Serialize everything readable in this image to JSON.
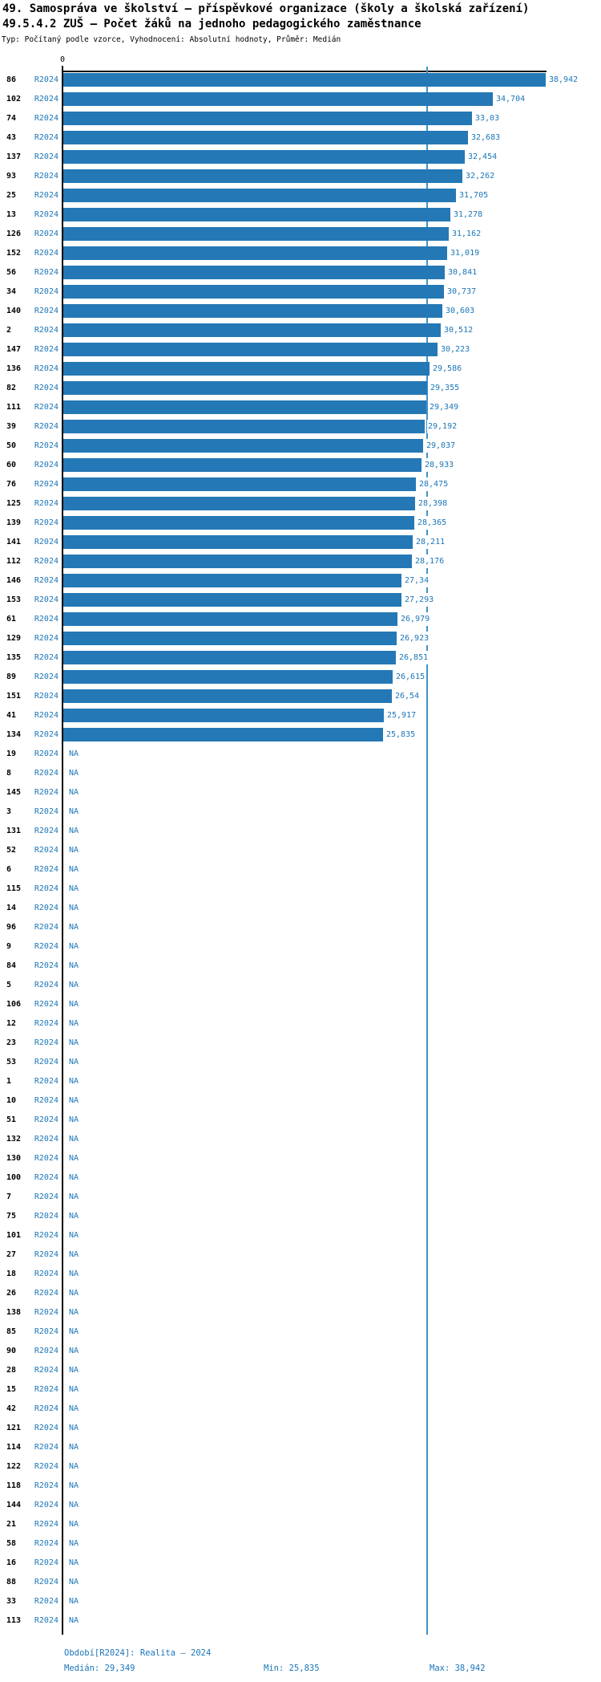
{
  "header": {
    "title_line1": "49. Samospráva ve školství – příspěvkové organizace (školy a školská zařízení)",
    "title_line2": "49.5.4.2 ZUŠ – Počet žáků na jednoho pedagogického zaměstnance",
    "subtitle": "Typ: Počítaný podle vzorce, Vyhodnocení: Absolutní hodnoty, Průměr: Medián"
  },
  "axis": {
    "origin_tick_label": "0"
  },
  "footer": {
    "period": "Období[R2024]: Realita – 2024",
    "median": "Medián: 29,349",
    "min": "Min: 25,835",
    "max": "Max: 38,942"
  },
  "colors": {
    "bar": "#2478b5",
    "accent_text": "#1b76b8",
    "median_line": "#4292c6",
    "axis": "#000000"
  },
  "chart_data": {
    "type": "bar",
    "orientation": "horizontal",
    "title": "49.5.4.2 ZUŠ – Počet žáků na jednoho pedagogického zaměstnance",
    "period_label": "R2024",
    "na_label": "NA",
    "xlim": [
      0,
      38.942
    ],
    "median": 29.349,
    "min": 25.835,
    "max": 38.942,
    "legend_position": "none",
    "grid": false,
    "rows": [
      {
        "id": "86",
        "value": 38.942,
        "label": "38,942"
      },
      {
        "id": "102",
        "value": 34.704,
        "label": "34,704"
      },
      {
        "id": "74",
        "value": 33.03,
        "label": "33,03"
      },
      {
        "id": "43",
        "value": 32.683,
        "label": "32,683"
      },
      {
        "id": "137",
        "value": 32.454,
        "label": "32,454"
      },
      {
        "id": "93",
        "value": 32.262,
        "label": "32,262"
      },
      {
        "id": "25",
        "value": 31.705,
        "label": "31,705"
      },
      {
        "id": "13",
        "value": 31.278,
        "label": "31,278"
      },
      {
        "id": "126",
        "value": 31.162,
        "label": "31,162"
      },
      {
        "id": "152",
        "value": 31.019,
        "label": "31,019"
      },
      {
        "id": "56",
        "value": 30.841,
        "label": "30,841"
      },
      {
        "id": "34",
        "value": 30.737,
        "label": "30,737"
      },
      {
        "id": "140",
        "value": 30.603,
        "label": "30,603"
      },
      {
        "id": "2",
        "value": 30.512,
        "label": "30,512"
      },
      {
        "id": "147",
        "value": 30.223,
        "label": "30,223"
      },
      {
        "id": "136",
        "value": 29.586,
        "label": "29,586"
      },
      {
        "id": "82",
        "value": 29.355,
        "label": "29,355"
      },
      {
        "id": "111",
        "value": 29.349,
        "label": "29,349"
      },
      {
        "id": "39",
        "value": 29.192,
        "label": "29,192"
      },
      {
        "id": "50",
        "value": 29.037,
        "label": "29,037"
      },
      {
        "id": "60",
        "value": 28.933,
        "label": "28,933"
      },
      {
        "id": "76",
        "value": 28.475,
        "label": "28,475"
      },
      {
        "id": "125",
        "value": 28.398,
        "label": "28,398"
      },
      {
        "id": "139",
        "value": 28.365,
        "label": "28,365"
      },
      {
        "id": "141",
        "value": 28.211,
        "label": "28,211"
      },
      {
        "id": "112",
        "value": 28.176,
        "label": "28,176"
      },
      {
        "id": "146",
        "value": 27.34,
        "label": "27,34"
      },
      {
        "id": "153",
        "value": 27.293,
        "label": "27,293"
      },
      {
        "id": "61",
        "value": 26.979,
        "label": "26,979"
      },
      {
        "id": "129",
        "value": 26.923,
        "label": "26,923"
      },
      {
        "id": "135",
        "value": 26.851,
        "label": "26,851"
      },
      {
        "id": "89",
        "value": 26.615,
        "label": "26,615"
      },
      {
        "id": "151",
        "value": 26.54,
        "label": "26,54"
      },
      {
        "id": "41",
        "value": 25.917,
        "label": "25,917"
      },
      {
        "id": "134",
        "value": 25.835,
        "label": "25,835"
      },
      {
        "id": "19",
        "value": null,
        "label": "NA"
      },
      {
        "id": "8",
        "value": null,
        "label": "NA"
      },
      {
        "id": "145",
        "value": null,
        "label": "NA"
      },
      {
        "id": "3",
        "value": null,
        "label": "NA"
      },
      {
        "id": "131",
        "value": null,
        "label": "NA"
      },
      {
        "id": "52",
        "value": null,
        "label": "NA"
      },
      {
        "id": "6",
        "value": null,
        "label": "NA"
      },
      {
        "id": "115",
        "value": null,
        "label": "NA"
      },
      {
        "id": "14",
        "value": null,
        "label": "NA"
      },
      {
        "id": "96",
        "value": null,
        "label": "NA"
      },
      {
        "id": "9",
        "value": null,
        "label": "NA"
      },
      {
        "id": "84",
        "value": null,
        "label": "NA"
      },
      {
        "id": "5",
        "value": null,
        "label": "NA"
      },
      {
        "id": "106",
        "value": null,
        "label": "NA"
      },
      {
        "id": "12",
        "value": null,
        "label": "NA"
      },
      {
        "id": "23",
        "value": null,
        "label": "NA"
      },
      {
        "id": "53",
        "value": null,
        "label": "NA"
      },
      {
        "id": "1",
        "value": null,
        "label": "NA"
      },
      {
        "id": "10",
        "value": null,
        "label": "NA"
      },
      {
        "id": "51",
        "value": null,
        "label": "NA"
      },
      {
        "id": "132",
        "value": null,
        "label": "NA"
      },
      {
        "id": "130",
        "value": null,
        "label": "NA"
      },
      {
        "id": "100",
        "value": null,
        "label": "NA"
      },
      {
        "id": "7",
        "value": null,
        "label": "NA"
      },
      {
        "id": "75",
        "value": null,
        "label": "NA"
      },
      {
        "id": "101",
        "value": null,
        "label": "NA"
      },
      {
        "id": "27",
        "value": null,
        "label": "NA"
      },
      {
        "id": "18",
        "value": null,
        "label": "NA"
      },
      {
        "id": "26",
        "value": null,
        "label": "NA"
      },
      {
        "id": "138",
        "value": null,
        "label": "NA"
      },
      {
        "id": "85",
        "value": null,
        "label": "NA"
      },
      {
        "id": "90",
        "value": null,
        "label": "NA"
      },
      {
        "id": "28",
        "value": null,
        "label": "NA"
      },
      {
        "id": "15",
        "value": null,
        "label": "NA"
      },
      {
        "id": "42",
        "value": null,
        "label": "NA"
      },
      {
        "id": "121",
        "value": null,
        "label": "NA"
      },
      {
        "id": "114",
        "value": null,
        "label": "NA"
      },
      {
        "id": "122",
        "value": null,
        "label": "NA"
      },
      {
        "id": "118",
        "value": null,
        "label": "NA"
      },
      {
        "id": "144",
        "value": null,
        "label": "NA"
      },
      {
        "id": "21",
        "value": null,
        "label": "NA"
      },
      {
        "id": "58",
        "value": null,
        "label": "NA"
      },
      {
        "id": "16",
        "value": null,
        "label": "NA"
      },
      {
        "id": "88",
        "value": null,
        "label": "NA"
      },
      {
        "id": "33",
        "value": null,
        "label": "NA"
      },
      {
        "id": "113",
        "value": null,
        "label": "NA"
      }
    ]
  }
}
